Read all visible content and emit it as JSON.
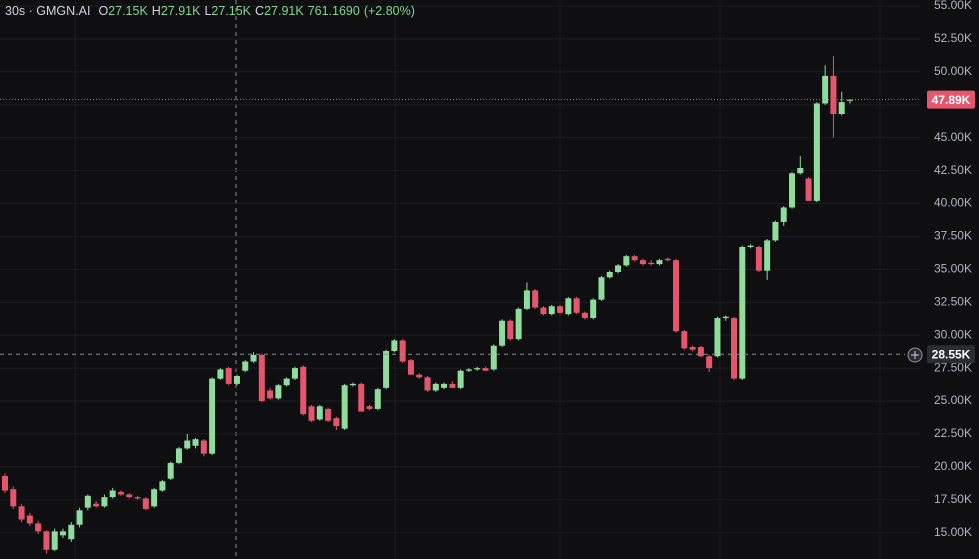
{
  "header": {
    "title": "30s · GMGN.AI",
    "ohlc": [
      {
        "label": "O",
        "value": "27.15K"
      },
      {
        "label": "H",
        "value": "27.91K"
      },
      {
        "label": "L",
        "value": "27.15K"
      },
      {
        "label": "C",
        "value": "27.91K"
      }
    ],
    "change": "761.1690",
    "change_pct": "(+2.80%)"
  },
  "chart_data": {
    "type": "candlestick",
    "up_color": "#8fdc9c",
    "down_color": "#e5566d",
    "ylim": [
      13.0,
      55.46
    ],
    "yticks": [
      {
        "value": 15,
        "label": "15.00K"
      },
      {
        "value": 17.5,
        "label": "17.50K"
      },
      {
        "value": 20,
        "label": "20.00K"
      },
      {
        "value": 22.5,
        "label": "22.50K"
      },
      {
        "value": 25,
        "label": "25.00K"
      },
      {
        "value": 27.5,
        "label": "27.50K"
      },
      {
        "value": 30,
        "label": "30.00K"
      },
      {
        "value": 32.5,
        "label": "32.50K"
      },
      {
        "value": 35,
        "label": "35.00K"
      },
      {
        "value": 37.5,
        "label": "37.50K"
      },
      {
        "value": 40,
        "label": "40.00K"
      },
      {
        "value": 42.5,
        "label": "42.50K"
      },
      {
        "value": 45,
        "label": "45.00K"
      },
      {
        "value": 47.5,
        "label": "47.50K"
      },
      {
        "value": 50,
        "label": "50.00K"
      },
      {
        "value": 52.5,
        "label": "52.50K"
      },
      {
        "value": 55,
        "label": "55.00K"
      }
    ],
    "grid": true,
    "last_price": {
      "value": 47.89,
      "label": "47.89K"
    },
    "crosshair": {
      "value": 28.55,
      "label": "28.55K"
    },
    "open": [
      19.3,
      18.3,
      17.0,
      16.3,
      15.7,
      15.1,
      13.7,
      14.8,
      14.5,
      15.6,
      16.9,
      17.2,
      17.0,
      17.7,
      18.1,
      17.9,
      17.7,
      17.6,
      17.0,
      18.2,
      19.1,
      20.3,
      21.4,
      21.6,
      22.0,
      21.0,
      26.7,
      27.5,
      26.3,
      27.3,
      28.0,
      28.5,
      25.8,
      25.2,
      26.2,
      26.7,
      27.6,
      24.6,
      23.6,
      24.4,
      23.7,
      22.9,
      26.2,
      26.3,
      24.6,
      24.4,
      26.0,
      28.8,
      29.6,
      28.1,
      27.0,
      26.8,
      25.8,
      26.0,
      26.3,
      26.0,
      27.3,
      27.4,
      27.5,
      27.4,
      29.2,
      31.1,
      29.7,
      32.0,
      33.4,
      32.1,
      31.6,
      32.2,
      31.6,
      32.8,
      31.7,
      31.3,
      32.7,
      34.4,
      34.8,
      35.3,
      36.0,
      35.7,
      35.5,
      35.4,
      35.8,
      35.7,
      30.3,
      29.1,
      29.1,
      28.4,
      28.4,
      31.3,
      31.3,
      26.7,
      36.7,
      36.7,
      34.9,
      37.2,
      38.6,
      39.7,
      42.3,
      41.9,
      40.2,
      47.6,
      49.7,
      46.8,
      47.8
    ],
    "high": [
      19.5,
      18.5,
      17.2,
      16.5,
      15.9,
      15.2,
      15.3,
      15.3,
      15.8,
      16.9,
      17.9,
      17.4,
      17.9,
      18.4,
      18.2,
      18.0,
      17.8,
      17.7,
      18.4,
      19.0,
      20.4,
      21.5,
      22.5,
      22.2,
      22.1,
      26.8,
      27.5,
      27.6,
      27.0,
      28.1,
      28.7,
      28.6,
      26.0,
      26.3,
      26.8,
      27.6,
      27.7,
      24.7,
      24.7,
      24.5,
      23.8,
      26.3,
      26.4,
      26.4,
      24.7,
      26.0,
      28.9,
      29.7,
      29.7,
      28.2,
      27.1,
      26.9,
      26.4,
      26.4,
      26.5,
      27.4,
      27.5,
      27.6,
      27.6,
      29.3,
      31.2,
      31.2,
      32.1,
      34.0,
      33.5,
      32.2,
      32.3,
      32.3,
      32.9,
      32.9,
      31.8,
      32.8,
      34.5,
      34.9,
      35.4,
      36.1,
      36.1,
      35.8,
      35.7,
      35.8,
      35.9,
      35.8,
      30.4,
      29.2,
      29.2,
      28.5,
      31.4,
      31.5,
      31.4,
      36.8,
      36.9,
      36.8,
      37.3,
      38.7,
      39.8,
      42.4,
      43.6,
      42.0,
      47.7,
      50.5,
      51.2,
      48.5,
      47.9
    ],
    "low": [
      18.0,
      16.8,
      15.8,
      15.5,
      14.9,
      13.4,
      13.6,
      14.6,
      14.3,
      15.4,
      16.7,
      16.9,
      16.9,
      17.6,
      17.8,
      17.6,
      17.5,
      16.7,
      16.9,
      18.1,
      19.0,
      20.2,
      21.3,
      21.4,
      20.8,
      20.9,
      26.6,
      26.2,
      26.2,
      27.2,
      27.9,
      24.9,
      25.1,
      25.1,
      26.1,
      26.6,
      23.9,
      23.4,
      23.5,
      23.4,
      22.8,
      22.8,
      26.1,
      24.2,
      24.3,
      24.3,
      25.9,
      28.7,
      27.9,
      27.0,
      26.7,
      25.7,
      25.7,
      25.9,
      26.0,
      25.9,
      27.2,
      27.3,
      27.3,
      27.3,
      29.1,
      29.6,
      29.6,
      31.9,
      32.0,
      31.5,
      31.5,
      31.6,
      31.5,
      31.6,
      31.2,
      31.2,
      32.6,
      34.3,
      34.7,
      35.2,
      35.6,
      35.3,
      35.3,
      35.3,
      35.6,
      30.2,
      28.9,
      28.8,
      28.3,
      27.2,
      28.3,
      31.1,
      26.6,
      26.6,
      36.6,
      34.8,
      34.2,
      37.1,
      38.3,
      39.6,
      42.2,
      40.2,
      40.1,
      47.5,
      45.0,
      46.7,
      47.6
    ],
    "close": [
      18.2,
      17.0,
      16.0,
      15.7,
      15.1,
      13.7,
      15.1,
      15.1,
      15.6,
      16.7,
      17.8,
      17.0,
      17.7,
      18.2,
      17.9,
      17.7,
      17.6,
      16.8,
      18.3,
      18.9,
      20.3,
      21.4,
      22.0,
      22.1,
      21.0,
      26.7,
      27.4,
      26.3,
      26.9,
      28.0,
      28.5,
      25.0,
      25.2,
      26.2,
      26.7,
      27.5,
      24.0,
      23.5,
      24.6,
      23.5,
      23.1,
      26.2,
      26.3,
      24.2,
      24.4,
      25.9,
      28.8,
      29.6,
      28.0,
      27.0,
      26.8,
      25.8,
      26.3,
      26.3,
      26.0,
      27.3,
      27.4,
      27.5,
      27.3,
      29.2,
      31.1,
      29.7,
      32.0,
      33.4,
      32.1,
      31.6,
      32.2,
      31.7,
      32.8,
      31.7,
      31.3,
      32.7,
      34.4,
      34.8,
      35.3,
      36.0,
      35.7,
      35.4,
      35.4,
      35.7,
      35.7,
      30.3,
      29.0,
      28.9,
      28.4,
      27.5,
      31.3,
      31.4,
      26.7,
      36.7,
      36.8,
      34.9,
      37.2,
      38.6,
      39.7,
      42.3,
      42.7,
      40.2,
      47.6,
      49.7,
      46.8,
      47.7,
      47.89
    ]
  }
}
